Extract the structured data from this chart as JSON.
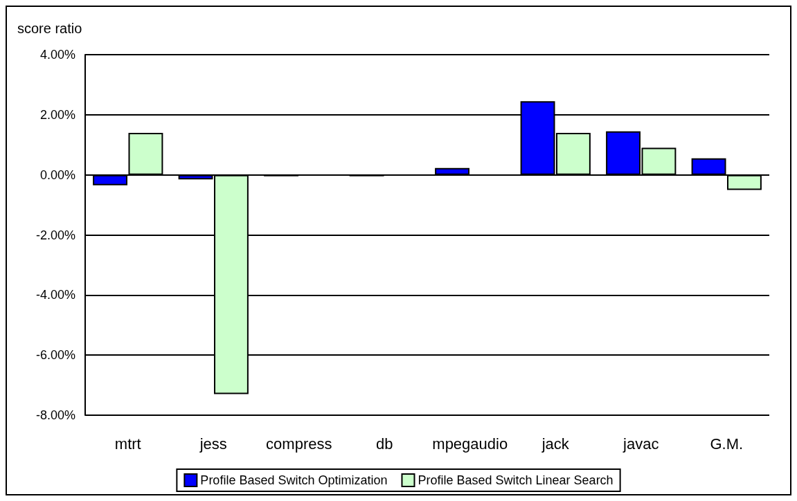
{
  "chart_data": {
    "type": "bar",
    "ylabel": "score ratio",
    "categories": [
      "mtrt",
      "jess",
      "compress",
      "db",
      "mpegaudio",
      "jack",
      "javac",
      "G.M."
    ],
    "series": [
      {
        "name": "Profile Based Switch Optimization",
        "color": "#0000ff",
        "values": [
          -0.35,
          -0.15,
          -0.05,
          -0.05,
          0.23,
          2.45,
          1.45,
          0.55
        ]
      },
      {
        "name": "Profile Based Switch Linear Search",
        "color": "#ccffcc",
        "values": [
          1.4,
          -7.3,
          null,
          null,
          null,
          1.4,
          0.9,
          -0.5
        ]
      }
    ],
    "ylim": [
      -8,
      4
    ],
    "yticks": [
      {
        "value": -8,
        "label": "-8.00%"
      },
      {
        "value": -6,
        "label": "-6.00%"
      },
      {
        "value": -4,
        "label": "-4.00%"
      },
      {
        "value": -2,
        "label": "-2.00%"
      },
      {
        "value": 0,
        "label": "0.00%"
      },
      {
        "value": 2,
        "label": "2.00%"
      },
      {
        "value": 4,
        "label": "4.00%"
      }
    ],
    "grid": "y",
    "legend": "bottom"
  }
}
